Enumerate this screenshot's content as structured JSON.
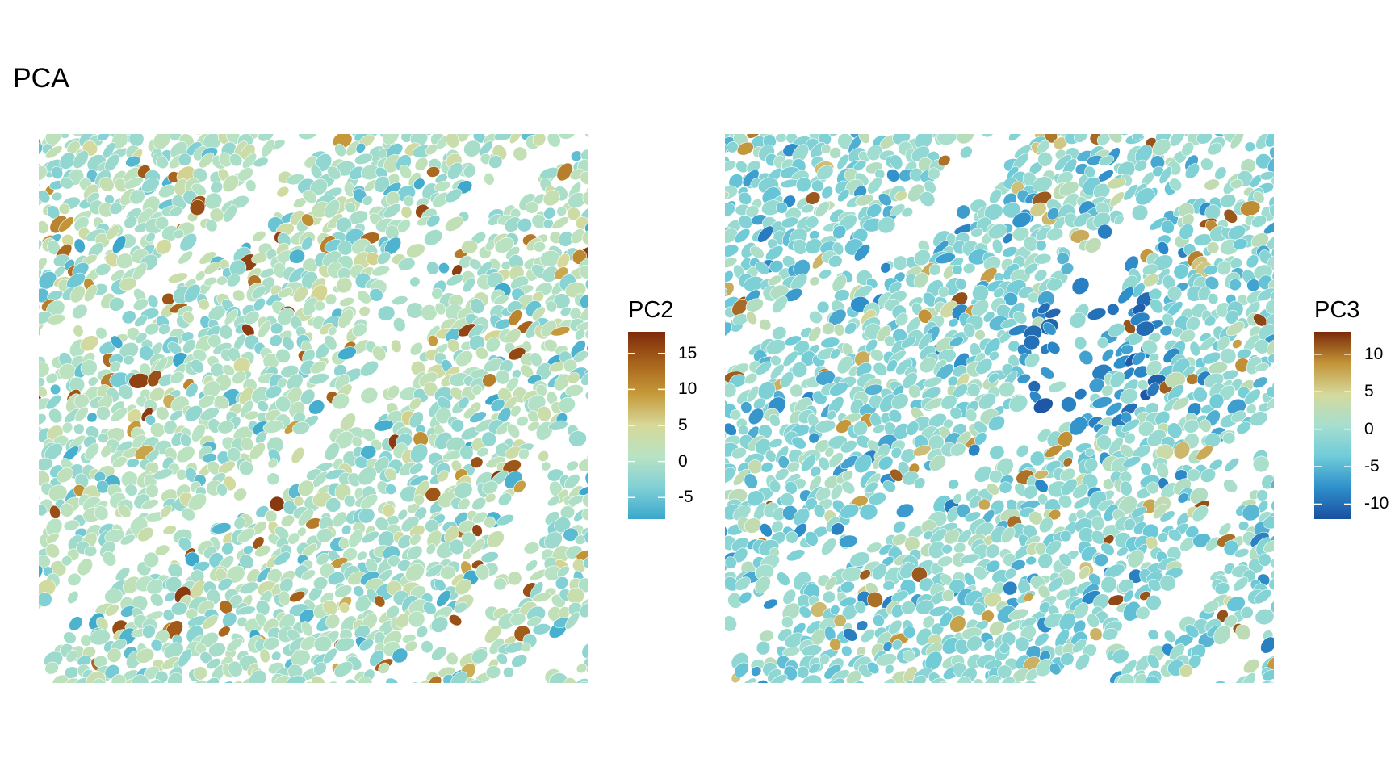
{
  "title": "PCA",
  "chart_data": [
    {
      "type": "heatmap",
      "description_kind": "spatial cell map colored by principal component score",
      "legend": {
        "title": "PC2",
        "range": [
          -8,
          18
        ],
        "ticks": [
          15,
          10,
          5,
          0,
          -5
        ],
        "tick_labels": [
          "15",
          "10",
          "5",
          "0",
          "-5"
        ],
        "colors": [
          "#3aa7cc",
          "#7fd0d6",
          "#b8e3c4",
          "#d6d99a",
          "#c69a3a",
          "#a8631c",
          "#7e2a0a"
        ]
      },
      "value_distribution": {
        "center": 0,
        "spread": 3.5,
        "high_tail_max": 17,
        "low_tail_min": -7.5
      }
    },
    {
      "type": "heatmap",
      "description_kind": "spatial cell map colored by principal component score",
      "legend": {
        "title": "PC3",
        "range": [
          -12,
          13
        ],
        "ticks": [
          10,
          5,
          0,
          -5,
          -10
        ],
        "tick_labels": [
          "10",
          "5",
          "0",
          "-5",
          "-10"
        ],
        "colors": [
          "#1a4fa0",
          "#2e8fcb",
          "#6fcbd8",
          "#a6dfcf",
          "#d5d99c",
          "#c39438",
          "#7a2a08"
        ]
      },
      "value_distribution": {
        "center": -1,
        "spread": 3.5,
        "high_tail_max": 12,
        "low_tail_min": -11.5
      }
    }
  ]
}
